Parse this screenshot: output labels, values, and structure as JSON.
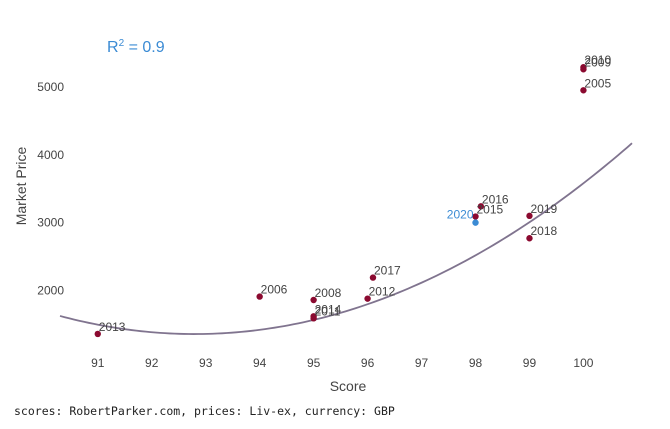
{
  "chart_data": {
    "type": "scatter",
    "xlabel": "Score",
    "ylabel": "Market Price",
    "xlim": [
      90.3,
      100.9
    ],
    "ylim": [
      1300,
      5750
    ],
    "xticks": [
      91,
      92,
      93,
      94,
      95,
      96,
      97,
      98,
      99,
      100
    ],
    "yticks": [
      2000,
      3000,
      4000,
      5000
    ],
    "annotation": {
      "prefix": "R",
      "superscript": "2",
      "suffix": " =  0.9"
    },
    "grid": false,
    "trendline": {
      "type": "quadratic",
      "a": 42.81,
      "b": -7945.2,
      "c": 370000
    },
    "points": [
      {
        "label": "2013",
        "score": 91,
        "price": 1360
      },
      {
        "label": "2006",
        "score": 94,
        "price": 1910
      },
      {
        "label": "2008",
        "score": 95,
        "price": 1860
      },
      {
        "label": "2014",
        "score": 95,
        "price": 1620
      },
      {
        "label": "2011",
        "score": 95,
        "price": 1590
      },
      {
        "label": "2012",
        "score": 96,
        "price": 1880
      },
      {
        "label": "2017",
        "score": 96.1,
        "price": 2190
      },
      {
        "label": "2016",
        "score": 98.1,
        "price": 3240
      },
      {
        "label": "2015",
        "score": 98,
        "price": 3090
      },
      {
        "label": "2020",
        "score": 98,
        "price": 3000,
        "highlight": true
      },
      {
        "label": "2019",
        "score": 99,
        "price": 3100
      },
      {
        "label": "2018",
        "score": 99,
        "price": 2770
      },
      {
        "label": "2010",
        "score": 100,
        "price": 5290
      },
      {
        "label": "2009",
        "score": 100,
        "price": 5260
      },
      {
        "label": "2005",
        "score": 100,
        "price": 4950
      }
    ],
    "colors": {
      "point": "#8b0a30",
      "highlight": "#3b8bd4",
      "trend": "#80748f",
      "annotation": "#3b8bd4",
      "label": "#444444"
    }
  },
  "footnote": "scores: RobertParker.com, prices: Liv-ex, currency: GBP"
}
